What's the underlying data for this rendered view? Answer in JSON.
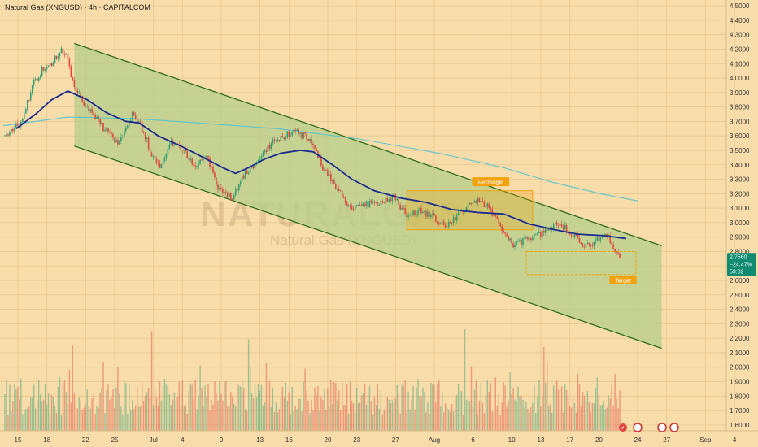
{
  "header": {
    "title": "Natural Gas (XNGUSD) · 4h · CAPITALCOM"
  },
  "watermark": {
    "main": "NATURALGAS",
    "sub": "Natural Gas (XNGUSD)"
  },
  "colors": {
    "background": "#f8dcaa",
    "channel_fill": "#b5cf8a",
    "channel_line": "#2f6b1e",
    "up_candle": "#2f9e70",
    "down_candle": "#e0453f",
    "ma_fast": "#1a2a8f",
    "ma_slow": "#5fc4c8",
    "annotation": "#f2a20e",
    "price_label": "#0f8b72"
  },
  "chart_data": {
    "type": "candlestick",
    "title": "Natural Gas (XNGUSD) · 4h · CAPITALCOM",
    "y_axis": {
      "ticks": [
        "4.5000",
        "4.4000",
        "4.3000",
        "4.2000",
        "4.1000",
        "4.0000",
        "3.9000",
        "3.8000",
        "3.7000",
        "3.6000",
        "3.5000",
        "3.4000",
        "3.3000",
        "3.2000",
        "3.1000",
        "3.0000",
        "2.9000",
        "2.8000",
        "2.7000",
        "2.6000",
        "2.5000",
        "2.4000",
        "2.3000",
        "2.2000",
        "2.1000",
        "2.0000",
        "1.9000",
        "1.8000",
        "1.7000",
        "1.6000"
      ],
      "range": [
        1.56,
        4.54
      ]
    },
    "x_axis": {
      "ticks": [
        {
          "label": "15",
          "idx": 0
        },
        {
          "label": "18",
          "idx": 18
        },
        {
          "label": "22",
          "idx": 42
        },
        {
          "label": "25",
          "idx": 60
        },
        {
          "label": "Jul",
          "idx": 84
        },
        {
          "label": "4",
          "idx": 102
        },
        {
          "label": "9",
          "idx": 126
        },
        {
          "label": "13",
          "idx": 150
        },
        {
          "label": "16",
          "idx": 168
        },
        {
          "label": "20",
          "idx": 192
        },
        {
          "label": "23",
          "idx": 210
        },
        {
          "label": "27",
          "idx": 234
        },
        {
          "label": "Aug",
          "idx": 258
        },
        {
          "label": "6",
          "idx": 282
        },
        {
          "label": "10",
          "idx": 306
        },
        {
          "label": "13",
          "idx": 324
        },
        {
          "label": "17",
          "idx": 342
        },
        {
          "label": "20",
          "idx": 360
        },
        {
          "label": "24",
          "idx": 384
        },
        {
          "label": "27",
          "idx": 402
        },
        {
          "label": "Sep",
          "idx": 426
        },
        {
          "label": "4",
          "idx": 444
        }
      ],
      "n_slots": 450
    },
    "close_path": [
      [
        0,
        3.6
      ],
      [
        6,
        3.65
      ],
      [
        12,
        3.7
      ],
      [
        18,
        3.95
      ],
      [
        24,
        4.05
      ],
      [
        30,
        4.1
      ],
      [
        36,
        4.2
      ],
      [
        40,
        4.13
      ],
      [
        44,
        3.93
      ],
      [
        52,
        3.8
      ],
      [
        60,
        3.68
      ],
      [
        68,
        3.58
      ],
      [
        72,
        3.55
      ],
      [
        80,
        3.75
      ],
      [
        84,
        3.7
      ],
      [
        92,
        3.48
      ],
      [
        98,
        3.38
      ],
      [
        104,
        3.56
      ],
      [
        110,
        3.52
      ],
      [
        118,
        3.4
      ],
      [
        126,
        3.45
      ],
      [
        134,
        3.22
      ],
      [
        142,
        3.18
      ],
      [
        150,
        3.35
      ],
      [
        158,
        3.42
      ],
      [
        166,
        3.55
      ],
      [
        174,
        3.6
      ],
      [
        180,
        3.63
      ],
      [
        186,
        3.6
      ],
      [
        192,
        3.55
      ],
      [
        198,
        3.38
      ],
      [
        206,
        3.25
      ],
      [
        214,
        3.1
      ],
      [
        222,
        3.12
      ],
      [
        232,
        3.14
      ],
      [
        242,
        3.18
      ],
      [
        250,
        3.05
      ],
      [
        258,
        3.08
      ],
      [
        266,
        3.05
      ],
      [
        274,
        2.96
      ],
      [
        284,
        3.08
      ],
      [
        292,
        3.15
      ],
      [
        300,
        3.12
      ],
      [
        308,
        2.98
      ],
      [
        316,
        2.84
      ],
      [
        322,
        2.87
      ],
      [
        330,
        2.9
      ],
      [
        338,
        2.96
      ],
      [
        344,
        3.0
      ],
      [
        350,
        2.95
      ],
      [
        358,
        2.86
      ],
      [
        364,
        2.83
      ],
      [
        370,
        2.9
      ],
      [
        374,
        2.92
      ],
      [
        378,
        2.84
      ],
      [
        382,
        2.76
      ]
    ],
    "ma_fast": [
      [
        8,
        3.65
      ],
      [
        20,
        3.75
      ],
      [
        30,
        3.85
      ],
      [
        40,
        3.91
      ],
      [
        52,
        3.85
      ],
      [
        64,
        3.76
      ],
      [
        76,
        3.7
      ],
      [
        84,
        3.69
      ],
      [
        96,
        3.6
      ],
      [
        110,
        3.53
      ],
      [
        124,
        3.45
      ],
      [
        136,
        3.38
      ],
      [
        144,
        3.34
      ],
      [
        152,
        3.38
      ],
      [
        162,
        3.44
      ],
      [
        172,
        3.48
      ],
      [
        184,
        3.5
      ],
      [
        192,
        3.49
      ],
      [
        204,
        3.4
      ],
      [
        216,
        3.3
      ],
      [
        230,
        3.22
      ],
      [
        246,
        3.17
      ],
      [
        262,
        3.14
      ],
      [
        278,
        3.09
      ],
      [
        294,
        3.07
      ],
      [
        310,
        3.06
      ],
      [
        326,
        2.99
      ],
      [
        342,
        2.95
      ],
      [
        356,
        2.92
      ],
      [
        372,
        2.91
      ],
      [
        386,
        2.89
      ]
    ],
    "ma_slow": [
      [
        0,
        3.67
      ],
      [
        40,
        3.73
      ],
      [
        80,
        3.72
      ],
      [
        120,
        3.69
      ],
      [
        170,
        3.65
      ],
      [
        220,
        3.58
      ],
      [
        270,
        3.48
      ],
      [
        310,
        3.38
      ],
      [
        340,
        3.28
      ],
      [
        370,
        3.2
      ],
      [
        393,
        3.15
      ]
    ],
    "channel": {
      "upper": [
        [
          44,
          4.24
        ],
        [
          408,
          2.84
        ]
      ],
      "lower": [
        [
          44,
          3.53
        ],
        [
          408,
          2.13
        ]
      ]
    },
    "volume": {
      "max": 1.0
    },
    "annotations": [
      {
        "label": "Rectangle",
        "type": "zone",
        "x0": 250,
        "x1": 328,
        "y0": 2.95,
        "y1": 3.22,
        "label_x": 302,
        "label_y": 3.28
      },
      {
        "label": "Target",
        "type": "target",
        "x0": 324,
        "x1": 392,
        "y0": 2.64,
        "y1": 2.8,
        "label_x": 384,
        "label_y": 2.6
      }
    ],
    "last_price": {
      "value": "2.7560",
      "change": "−24.47%",
      "countdown": "59:02",
      "y": 2.756
    }
  }
}
